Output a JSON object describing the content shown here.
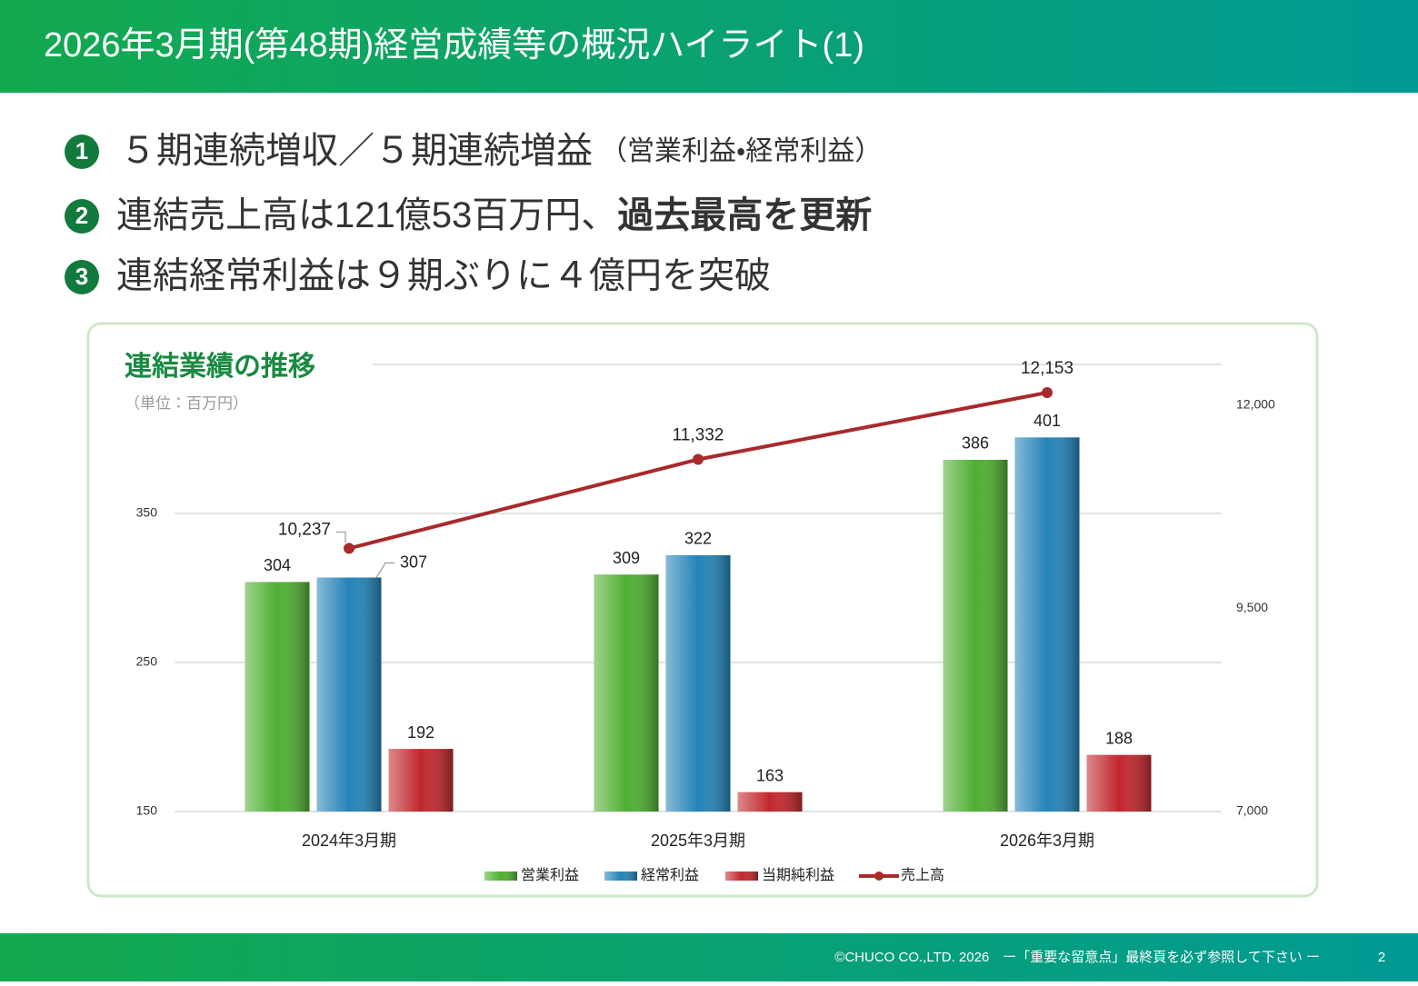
{
  "header": {
    "title": "2026年3月期(第48期)経営成績等の概況ハイライト(1)"
  },
  "bullets": [
    {
      "number": "1",
      "text": "５期連続増収／５期連続増益",
      "note": "（営業利益・経常利益）"
    },
    {
      "number": "2",
      "text": "連結売上高は121億53百万円、",
      "emphasis": "過去最高を更新"
    },
    {
      "number": "3",
      "text": "連結経常利益は９期ぶりに４億円を突破"
    }
  ],
  "chart_data": {
    "type": "bar",
    "title": "連結業績の推移",
    "unit": "（単位：百万円）",
    "categories": [
      "2024年3月期",
      "2025年3月期",
      "2026年3月期"
    ],
    "series": [
      {
        "name": "営業利益",
        "color": "#4fae32",
        "values": [
          304,
          309,
          386
        ]
      },
      {
        "name": "経常利益",
        "color": "#2383b8",
        "values": [
          307,
          322,
          401
        ]
      },
      {
        "name": "当期純利益",
        "color": "#c1272d",
        "values": [
          192,
          163,
          188
        ]
      },
      {
        "name": "売上高",
        "type": "line",
        "axis": "y2",
        "color": "#a82a2a",
        "values": [
          10237,
          11332,
          12153
        ],
        "value_labels": [
          "10,237",
          "11,332",
          "12,153"
        ]
      }
    ],
    "ylim": [
      150,
      450
    ],
    "yticks": [
      150,
      250,
      350
    ],
    "y2lim": [
      7000,
      12500
    ],
    "y2ticks": [
      {
        "value": 7000,
        "label": "7,000"
      },
      {
        "value": 9500,
        "label": "9,500"
      },
      {
        "value": 12000,
        "label": "12,000"
      }
    ],
    "grid": true,
    "legend": "bottom"
  },
  "footer": {
    "copyright": "©CHUCO CO.,LTD. 2026　ー「重要な留意点」最終頁を必ず参照して下さい ー",
    "page": "2"
  }
}
